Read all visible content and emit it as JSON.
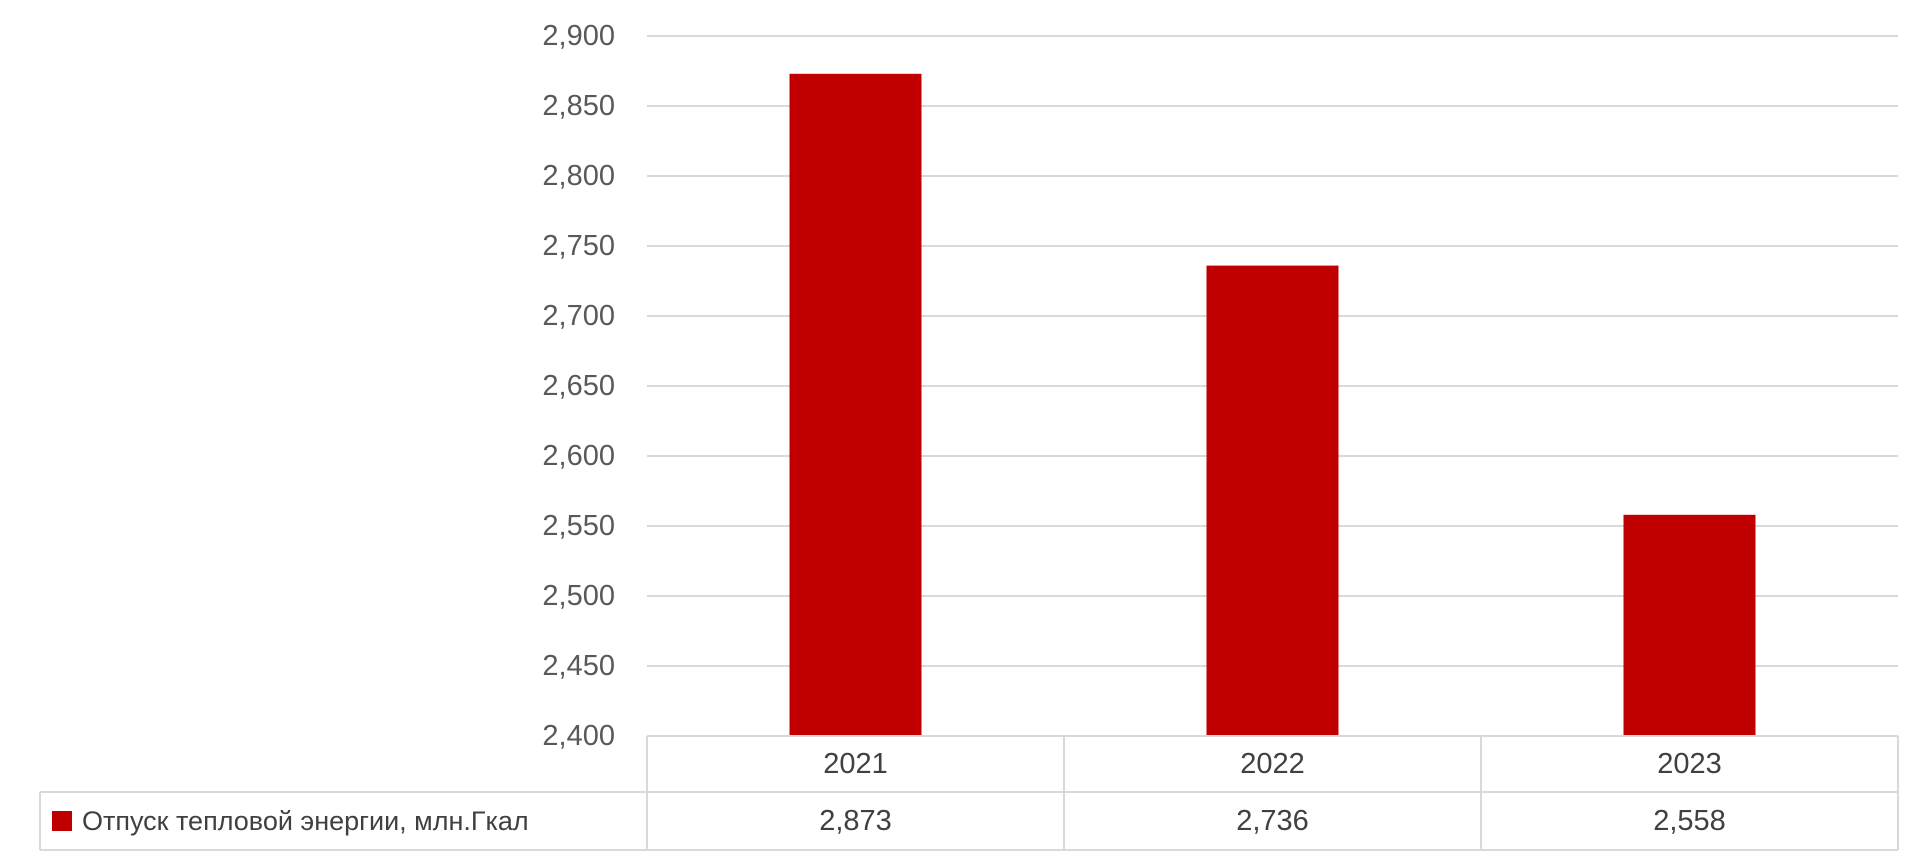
{
  "chart_data": {
    "type": "bar",
    "categories": [
      "2021",
      "2022",
      "2023"
    ],
    "series": [
      {
        "name": "Отпуск тепловой энергии, млн.Гкал",
        "values": [
          2.873,
          2.736,
          2.558
        ],
        "value_labels": [
          "2,873",
          "2,736",
          "2,558"
        ],
        "color": "#c00000"
      }
    ],
    "y_ticks": [
      2.4,
      2.45,
      2.5,
      2.55,
      2.6,
      2.65,
      2.7,
      2.75,
      2.8,
      2.85,
      2.9
    ],
    "y_tick_labels": [
      "2,400",
      "2,450",
      "2,500",
      "2,550",
      "2,600",
      "2,650",
      "2,700",
      "2,750",
      "2,800",
      "2,850",
      "2,900"
    ],
    "ylim": [
      2.4,
      2.9
    ],
    "grid": true,
    "legend": "data-table-left",
    "gridline_color": "#d9d9d9"
  }
}
